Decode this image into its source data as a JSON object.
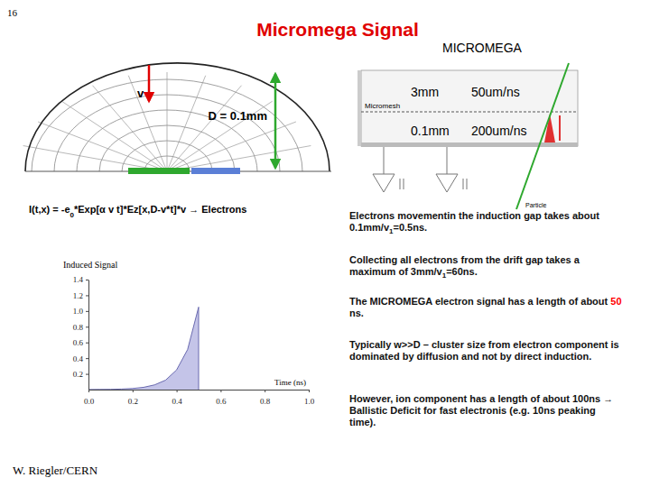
{
  "slide_number": "16",
  "title": "Micromega Signal",
  "subtitle": "MICROMEGA",
  "diagram": {
    "arrow_label": "v",
    "gap_label": "D = 0.1mm"
  },
  "detector": {
    "drift_gap": "3mm",
    "drift_speed": "50um/ns",
    "amplification_gap": "0.1mm",
    "amplification_speed": "200um/ns",
    "mesh_label": "Micromesh",
    "track_label": "Particle"
  },
  "formula": [
    {
      "text": "I(t,x) = -e"
    },
    {
      "text": "0",
      "sub": true
    },
    {
      "text": "*Exp[α v t]*Ez[x,D-v*t]*v → Electrons"
    }
  ],
  "chart_data": {
    "type": "area",
    "title": "Induced Signal",
    "x_label": "Time (ns)",
    "x": [
      0,
      0.05,
      0.1,
      0.15,
      0.2,
      0.25,
      0.3,
      0.35,
      0.4,
      0.45,
      0.5,
      0.5
    ],
    "values": [
      0.001,
      0.002,
      0.003,
      0.007,
      0.014,
      0.029,
      0.06,
      0.12,
      0.25,
      0.51,
      1.05,
      0
    ],
    "color": "#c4c4e8",
    "xlim": [
      0,
      1
    ],
    "ylim": [
      0,
      1.4
    ],
    "xticks": [
      {
        "value": 0,
        "label": "0.0"
      },
      0.2,
      0.4,
      0.6,
      0.8,
      {
        "value": 1,
        "label": "1.0"
      }
    ],
    "yticks": [
      0.2,
      0.4,
      0.6,
      0.8,
      {
        "value": 1,
        "label": "1.0"
      },
      1.2,
      1.4
    ]
  },
  "notes": [
    [
      {
        "text": "Electrons movementin the induction gap takes about 0.1mm/v"
      },
      {
        "text": "1",
        "sub": true
      },
      {
        "text": "=0.5ns."
      }
    ],
    [
      {
        "text": "Collecting all electrons from the drift gap takes a maximum of 3mm/v"
      },
      {
        "text": "1",
        "sub": true
      },
      {
        "text": "=60ns."
      }
    ],
    [
      {
        "text": "The MICROMEGA electron signal has a length of about "
      },
      {
        "text": "50",
        "color": "red"
      },
      {
        "text": " ns."
      }
    ],
    [
      {
        "text": "Typically w>>D – cluster size from electron component is dominated by diffusion and not by direct induction."
      }
    ],
    [
      {
        "text": "However, ion component has a length of about 100ns → Ballistic Deficit for fast electronis (e.g. 10ns peaking time)."
      }
    ]
  ],
  "author": "W. Riegler/CERN"
}
